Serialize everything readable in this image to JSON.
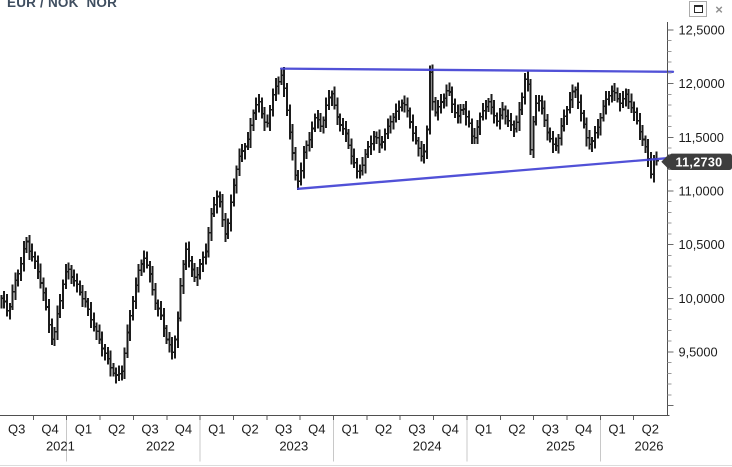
{
  "window": {
    "title": "EUR / NOK  NOR",
    "controls": {
      "maximize": "maximize",
      "close_glyph": "×"
    }
  },
  "chart_data": {
    "type": "bar",
    "subtype": "ohlc-weekly-bars",
    "title": "EUR / NOK  NOR",
    "instrument": "EUR / NOK",
    "bar_color": "#1c1c1c",
    "accent_blue": "#4343d4",
    "y_axis": {
      "side": "right",
      "min": 8.9,
      "max": 12.57,
      "tick_interval": 0.5,
      "minor_tick_interval": 0.1,
      "tick_values": [
        12.5,
        12.0,
        11.5,
        11.0,
        10.5,
        10.0,
        9.5
      ],
      "tick_labels": [
        "12,5000",
        "12,0000",
        "11,5000",
        "11,0000",
        "10,5000",
        "10,0000",
        "9,5000"
      ]
    },
    "x_axis": {
      "quarter_labels": [
        "Q3",
        "Q4",
        "Q1",
        "Q2",
        "Q3",
        "Q4",
        "Q1",
        "Q2",
        "Q3",
        "Q4",
        "Q1",
        "Q2",
        "Q3",
        "Q4",
        "Q1",
        "Q2",
        "Q3",
        "Q4",
        "Q1",
        "Q2"
      ],
      "years": [
        {
          "label": "2021",
          "quarters": 2
        },
        {
          "label": "2022",
          "quarters": 4
        },
        {
          "label": "2023",
          "quarters": 4
        },
        {
          "label": "2024",
          "quarters": 4
        },
        {
          "label": "2025",
          "quarters": 4
        },
        {
          "label": "2026",
          "quarters": 2
        }
      ]
    },
    "last_price": {
      "label": "11,2730",
      "value": 11.273
    },
    "trendlines": [
      {
        "name": "resistance",
        "q1": 8.43,
        "p1": 12.14,
        "q2": 20.18,
        "p2": 12.11,
        "color": "#4343d4"
      },
      {
        "name": "support",
        "q1": 8.94,
        "p1": 11.02,
        "q2": 20.18,
        "p2": 11.31,
        "color": "#4343d4"
      }
    ],
    "series_weekly_close_anchors": {
      "units": "q = quarters elapsed since start of Q3 2021; p = EUR/NOK close",
      "points": [
        [
          0.06,
          10.0
        ],
        [
          0.24,
          9.85
        ],
        [
          0.42,
          10.1
        ],
        [
          0.6,
          10.3
        ],
        [
          0.78,
          10.55
        ],
        [
          0.9,
          10.45
        ],
        [
          1.08,
          10.3
        ],
        [
          1.26,
          10.1
        ],
        [
          1.44,
          9.8
        ],
        [
          1.59,
          9.58
        ],
        [
          1.74,
          9.9
        ],
        [
          1.92,
          10.2
        ],
        [
          2.04,
          10.28
        ],
        [
          2.22,
          10.15
        ],
        [
          2.4,
          10.05
        ],
        [
          2.58,
          9.95
        ],
        [
          2.76,
          9.8
        ],
        [
          2.94,
          9.65
        ],
        [
          3.12,
          9.5
        ],
        [
          3.3,
          9.35
        ],
        [
          3.48,
          9.27
        ],
        [
          3.63,
          9.3
        ],
        [
          3.78,
          9.6
        ],
        [
          3.96,
          9.95
        ],
        [
          4.14,
          10.22
        ],
        [
          4.32,
          10.38
        ],
        [
          4.5,
          10.2
        ],
        [
          4.68,
          9.95
        ],
        [
          4.86,
          9.82
        ],
        [
          5.01,
          9.6
        ],
        [
          5.16,
          9.48
        ],
        [
          5.31,
          9.72
        ],
        [
          5.46,
          10.25
        ],
        [
          5.58,
          10.48
        ],
        [
          5.7,
          10.3
        ],
        [
          5.88,
          10.2
        ],
        [
          6.0,
          10.3
        ],
        [
          6.18,
          10.45
        ],
        [
          6.36,
          10.8
        ],
        [
          6.54,
          11.0
        ],
        [
          6.66,
          10.75
        ],
        [
          6.78,
          10.6
        ],
        [
          6.96,
          10.95
        ],
        [
          7.14,
          11.3
        ],
        [
          7.29,
          11.35
        ],
        [
          7.44,
          11.5
        ],
        [
          7.62,
          11.75
        ],
        [
          7.74,
          11.9
        ],
        [
          7.86,
          11.7
        ],
        [
          7.98,
          11.6
        ],
        [
          8.1,
          11.75
        ],
        [
          8.25,
          11.95
        ],
        [
          8.43,
          12.08
        ],
        [
          8.55,
          11.9
        ],
        [
          8.7,
          11.55
        ],
        [
          8.85,
          11.15
        ],
        [
          8.97,
          11.1
        ],
        [
          9.12,
          11.35
        ],
        [
          9.3,
          11.5
        ],
        [
          9.48,
          11.7
        ],
        [
          9.66,
          11.6
        ],
        [
          9.81,
          11.85
        ],
        [
          9.93,
          11.95
        ],
        [
          10.08,
          11.7
        ],
        [
          10.23,
          11.6
        ],
        [
          10.38,
          11.5
        ],
        [
          10.53,
          11.35
        ],
        [
          10.71,
          11.18
        ],
        [
          10.86,
          11.25
        ],
        [
          11.04,
          11.4
        ],
        [
          11.22,
          11.5
        ],
        [
          11.39,
          11.42
        ],
        [
          11.57,
          11.55
        ],
        [
          11.75,
          11.7
        ],
        [
          11.93,
          11.75
        ],
        [
          12.08,
          11.85
        ],
        [
          12.23,
          11.7
        ],
        [
          12.38,
          11.55
        ],
        [
          12.53,
          11.4
        ],
        [
          12.68,
          11.32
        ],
        [
          12.8,
          11.55
        ],
        [
          12.89,
          12.12
        ],
        [
          13.01,
          11.72
        ],
        [
          13.13,
          11.75
        ],
        [
          13.28,
          11.85
        ],
        [
          13.43,
          11.95
        ],
        [
          13.58,
          11.8
        ],
        [
          13.73,
          11.7
        ],
        [
          13.88,
          11.8
        ],
        [
          14.03,
          11.65
        ],
        [
          14.18,
          11.45
        ],
        [
          14.33,
          11.6
        ],
        [
          14.48,
          11.75
        ],
        [
          14.63,
          11.85
        ],
        [
          14.78,
          11.75
        ],
        [
          14.93,
          11.65
        ],
        [
          15.08,
          11.75
        ],
        [
          15.23,
          11.65
        ],
        [
          15.38,
          11.55
        ],
        [
          15.53,
          11.7
        ],
        [
          15.68,
          11.9
        ],
        [
          15.8,
          12.22
        ],
        [
          15.92,
          11.3
        ],
        [
          16.02,
          11.75
        ],
        [
          16.12,
          11.88
        ],
        [
          16.28,
          11.7
        ],
        [
          16.45,
          11.52
        ],
        [
          16.62,
          11.4
        ],
        [
          16.75,
          11.52
        ],
        [
          16.95,
          11.72
        ],
        [
          17.12,
          11.88
        ],
        [
          17.27,
          11.93
        ],
        [
          17.42,
          11.72
        ],
        [
          17.57,
          11.52
        ],
        [
          17.72,
          11.44
        ],
        [
          17.87,
          11.56
        ],
        [
          18.02,
          11.7
        ],
        [
          18.17,
          11.83
        ],
        [
          18.32,
          11.93
        ],
        [
          18.47,
          11.88
        ],
        [
          18.62,
          11.84
        ],
        [
          18.77,
          11.9
        ],
        [
          18.9,
          11.82
        ],
        [
          19.03,
          11.7
        ],
        [
          19.16,
          11.58
        ],
        [
          19.29,
          11.45
        ],
        [
          19.42,
          11.32
        ],
        [
          19.52,
          11.18
        ],
        [
          19.62,
          11.33
        ],
        [
          19.7,
          11.27
        ]
      ]
    }
  }
}
